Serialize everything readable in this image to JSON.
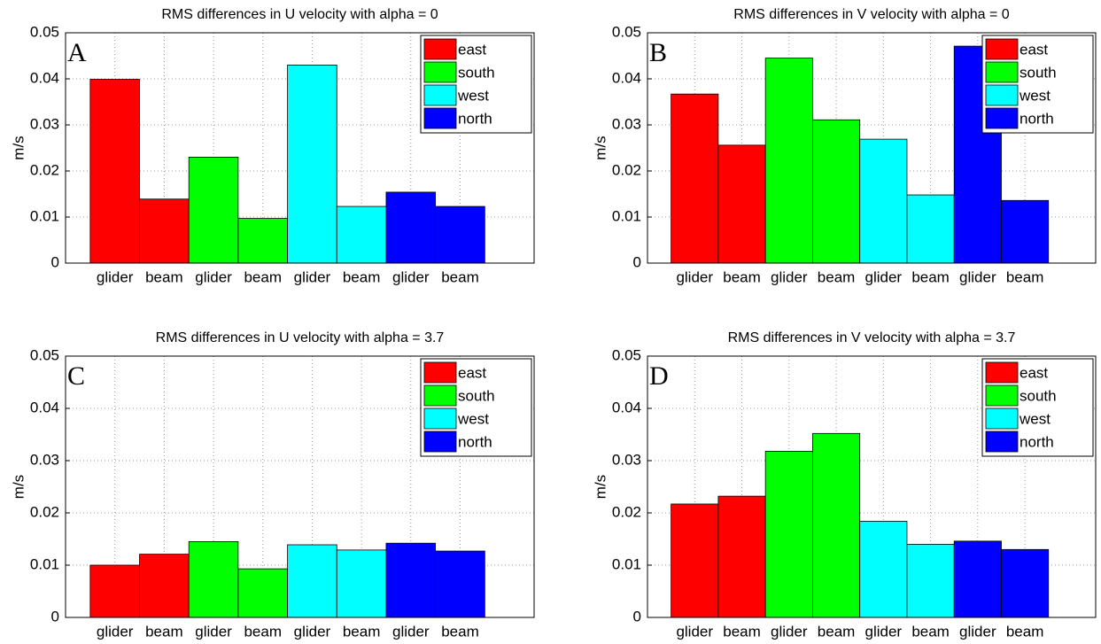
{
  "chart_data": [
    {
      "type": "bar",
      "title": "RMS differences in U velocity with alpha = 0",
      "annotation": "A",
      "ylabel": "m/s",
      "categories": [
        "glider",
        "beam",
        "glider",
        "beam",
        "glider",
        "beam",
        "glider",
        "beam"
      ],
      "series": [
        {
          "name": "east",
          "color": "#ff0000",
          "values": [
            0.0399,
            0.0139,
            null,
            null,
            null,
            null,
            null,
            null
          ]
        },
        {
          "name": "south",
          "color": "#00ff00",
          "values": [
            null,
            null,
            0.023,
            0.0097,
            null,
            null,
            null,
            null
          ]
        },
        {
          "name": "west",
          "color": "#00ffff",
          "values": [
            null,
            null,
            null,
            null,
            0.043,
            0.0123,
            null,
            null
          ]
        },
        {
          "name": "north",
          "color": "#0000ff",
          "values": [
            null,
            null,
            null,
            null,
            null,
            null,
            0.0154,
            0.0123
          ]
        }
      ],
      "ylim": [
        0,
        0.05
      ],
      "yticks": [
        0,
        0.01,
        0.02,
        0.03,
        0.04,
        0.05
      ],
      "grid": true,
      "legend": "upper-right"
    },
    {
      "type": "bar",
      "title": "RMS differences in V velocity with alpha = 0",
      "annotation": "B",
      "ylabel": "m/s",
      "categories": [
        "glider",
        "beam",
        "glider",
        "beam",
        "glider",
        "beam",
        "glider",
        "beam"
      ],
      "series": [
        {
          "name": "east",
          "color": "#ff0000",
          "values": [
            0.0367,
            0.0256,
            null,
            null,
            null,
            null,
            null,
            null
          ]
        },
        {
          "name": "south",
          "color": "#00ff00",
          "values": [
            null,
            null,
            0.0445,
            0.0311,
            null,
            null,
            null,
            null
          ]
        },
        {
          "name": "west",
          "color": "#00ffff",
          "values": [
            null,
            null,
            null,
            null,
            0.0269,
            0.0148,
            null,
            null
          ]
        },
        {
          "name": "north",
          "color": "#0000ff",
          "values": [
            null,
            null,
            null,
            null,
            null,
            null,
            0.0471,
            0.0136
          ]
        }
      ],
      "ylim": [
        0,
        0.05
      ],
      "yticks": [
        0,
        0.01,
        0.02,
        0.03,
        0.04,
        0.05
      ],
      "grid": true,
      "legend": "upper-right"
    },
    {
      "type": "bar",
      "title": "RMS differences in U velocity with alpha = 3.7",
      "annotation": "C",
      "ylabel": "m/s",
      "categories": [
        "glider",
        "beam",
        "glider",
        "beam",
        "glider",
        "beam",
        "glider",
        "beam"
      ],
      "series": [
        {
          "name": "east",
          "color": "#ff0000",
          "values": [
            0.01,
            0.0121,
            null,
            null,
            null,
            null,
            null,
            null
          ]
        },
        {
          "name": "south",
          "color": "#00ff00",
          "values": [
            null,
            null,
            0.0145,
            0.0093,
            null,
            null,
            null,
            null
          ]
        },
        {
          "name": "west",
          "color": "#00ffff",
          "values": [
            null,
            null,
            null,
            null,
            0.0139,
            0.0129,
            null,
            null
          ]
        },
        {
          "name": "north",
          "color": "#0000ff",
          "values": [
            null,
            null,
            null,
            null,
            null,
            null,
            0.0142,
            0.0127
          ]
        }
      ],
      "ylim": [
        0,
        0.05
      ],
      "yticks": [
        0,
        0.01,
        0.02,
        0.03,
        0.04,
        0.05
      ],
      "grid": true,
      "legend": "upper-right"
    },
    {
      "type": "bar",
      "title": "RMS differences in V velocity with alpha = 3.7",
      "annotation": "D",
      "ylabel": "m/s",
      "categories": [
        "glider",
        "beam",
        "glider",
        "beam",
        "glider",
        "beam",
        "glider",
        "beam"
      ],
      "series": [
        {
          "name": "east",
          "color": "#ff0000",
          "values": [
            0.0217,
            0.0232,
            null,
            null,
            null,
            null,
            null,
            null
          ]
        },
        {
          "name": "south",
          "color": "#00ff00",
          "values": [
            null,
            null,
            0.0318,
            0.0352,
            null,
            null,
            null,
            null
          ]
        },
        {
          "name": "west",
          "color": "#00ffff",
          "values": [
            null,
            null,
            null,
            null,
            0.0184,
            0.014,
            null,
            null
          ]
        },
        {
          "name": "north",
          "color": "#0000ff",
          "values": [
            null,
            null,
            null,
            null,
            null,
            null,
            0.0146,
            0.013
          ]
        }
      ],
      "ylim": [
        0,
        0.05
      ],
      "yticks": [
        0,
        0.01,
        0.02,
        0.03,
        0.04,
        0.05
      ],
      "grid": true,
      "legend": "upper-right"
    }
  ]
}
